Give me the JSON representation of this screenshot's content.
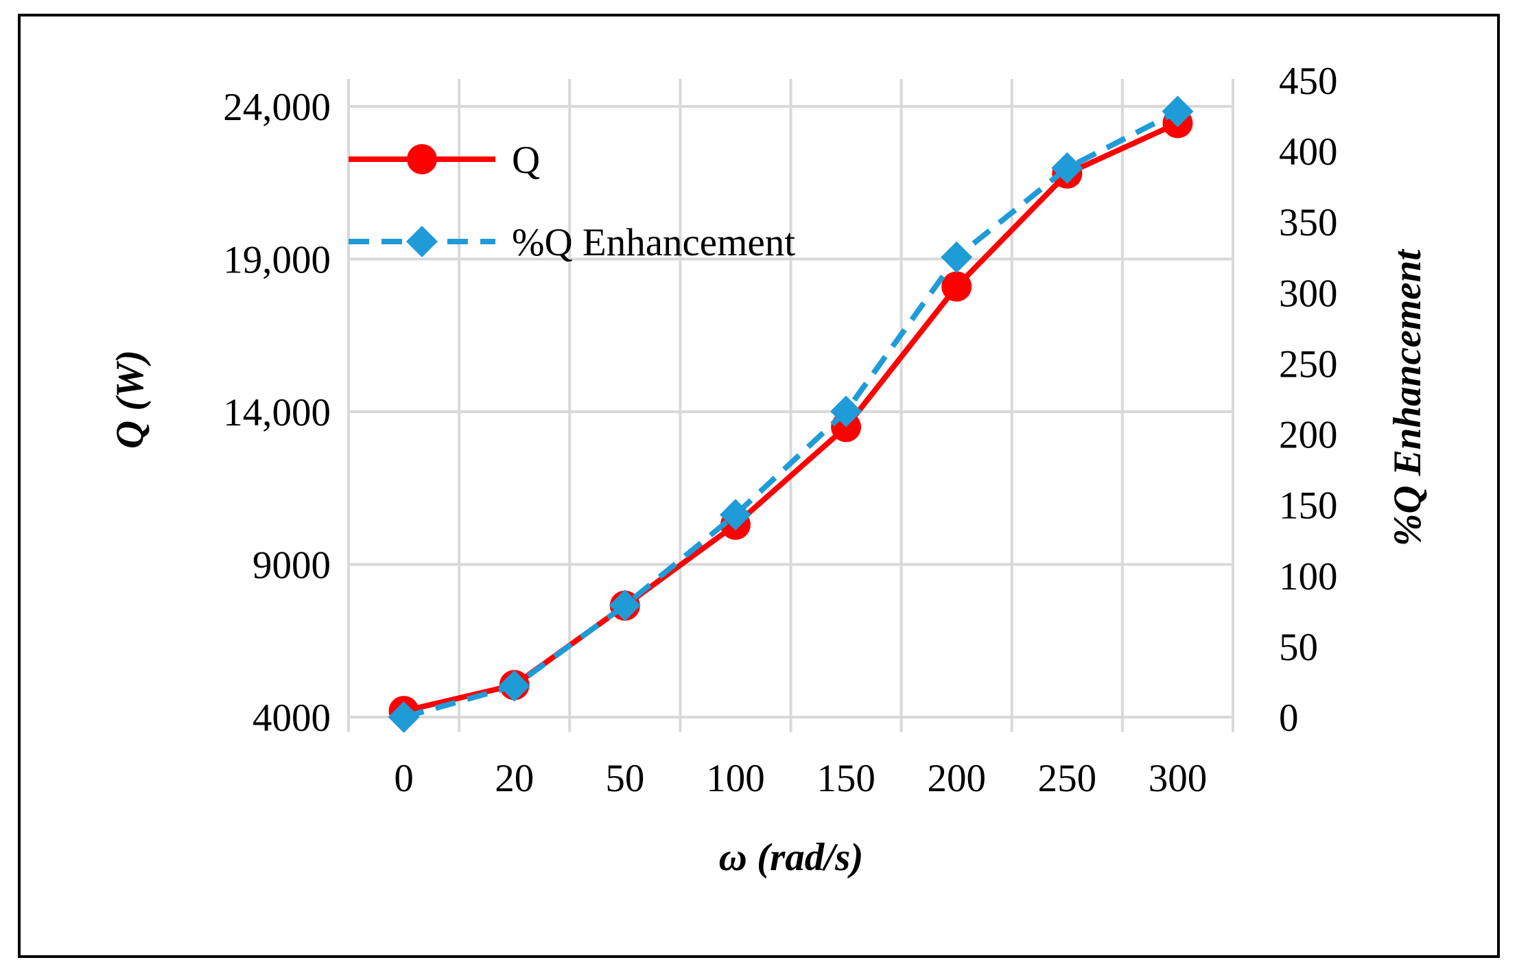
{
  "chart_data": {
    "type": "line",
    "categories": [
      "0",
      "20",
      "50",
      "100",
      "150",
      "200",
      "250",
      "300"
    ],
    "xlabel": "ω (rad/s)",
    "ylabel_left": "Q (W)",
    "ylabel_right": "%Q Enhancement",
    "y_left": {
      "lim": [
        4000,
        24000
      ],
      "ticks": [
        4000,
        9000,
        14000,
        19000,
        24000
      ],
      "tick_labels": [
        "4000",
        "9000",
        "14,000",
        "19,000",
        "24,000"
      ]
    },
    "y_right": {
      "lim": [
        0,
        450
      ],
      "ticks": [
        0,
        50,
        100,
        150,
        200,
        250,
        300,
        350,
        400,
        450
      ],
      "tick_labels": [
        "0",
        "50",
        "100",
        "150",
        "200",
        "250",
        "300",
        "350",
        "400",
        "450"
      ]
    },
    "grid": true,
    "legend_position": "top-left",
    "series": [
      {
        "name": "Q",
        "axis": "left",
        "color": "#ff0000",
        "marker": "circle",
        "line_style": "solid",
        "values": [
          4200,
          5050,
          7650,
          10300,
          13500,
          18100,
          21800,
          23450
        ]
      },
      {
        "name": "%Q Enhancement",
        "axis": "right",
        "color": "#1f9bd7",
        "marker": "diamond",
        "line_style": "dashed",
        "values": [
          0,
          22,
          79,
          143,
          216,
          325,
          388,
          428
        ]
      }
    ]
  }
}
